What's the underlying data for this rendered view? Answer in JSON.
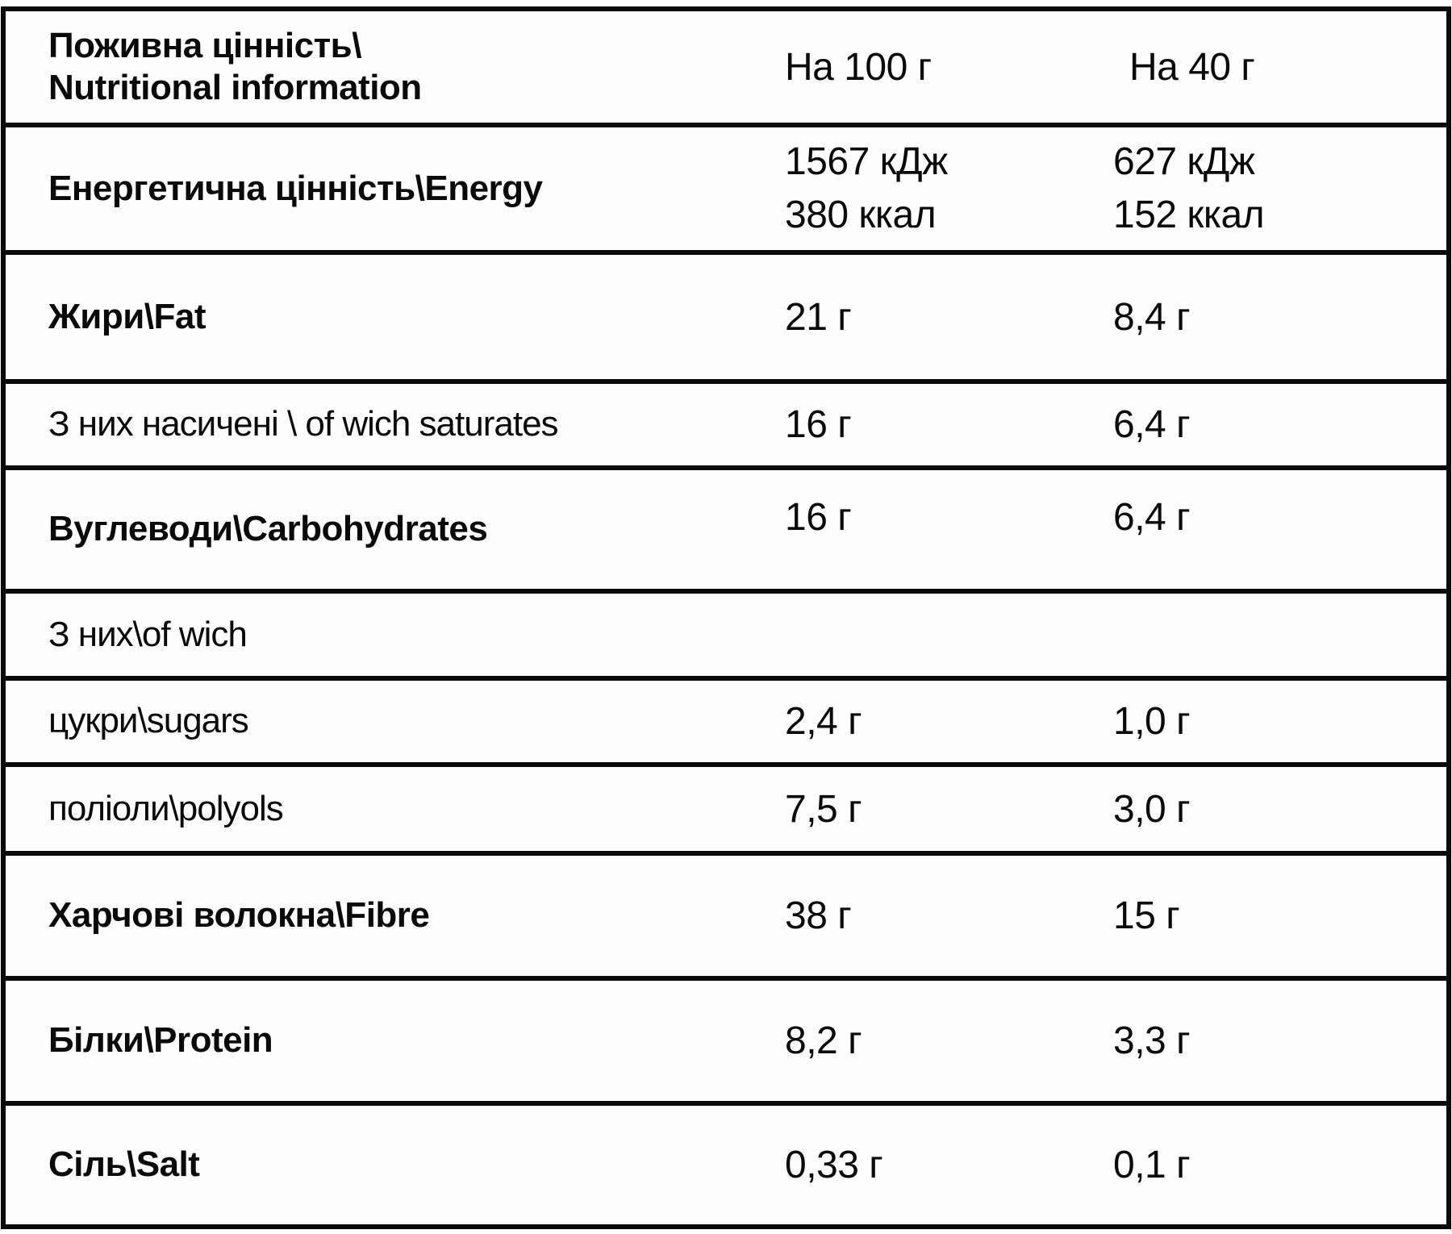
{
  "table": {
    "header": {
      "label_line1": "Поживна цінність\\",
      "label_line2": "Nutritional information",
      "col_per100": "На 100 г",
      "col_per40": "На 40 г"
    },
    "rows": [
      {
        "label": "Енергетична цінність\\Energy",
        "per100_line1": "1567 кДж",
        "per100_line2": "380 ккал",
        "per40_line1": "627 кДж",
        "per40_line2": "152 ккал"
      },
      {
        "label": "Жири\\Fat",
        "per100": "21 г",
        "per40": "8,4 г"
      },
      {
        "label": "З них насичені \\ of wich saturates",
        "per100": "16 г",
        "per40": "6,4 г"
      },
      {
        "label": "Вуглеводи\\Carbohydrates",
        "per100": "16 г",
        "per40": "6,4 г"
      },
      {
        "label": "З них\\of wich",
        "per100": "",
        "per40": ""
      },
      {
        "label": "цукри\\sugars",
        "per100": "2,4 г",
        "per40": "1,0 г"
      },
      {
        "label": "поліоли\\polyols",
        "per100": "7,5 г",
        "per40": "3,0 г"
      },
      {
        "label": "Харчові волокна\\Fibre",
        "per100": "38 г",
        "per40": "15 г"
      },
      {
        "label": "Білки\\Protein",
        "per100": "8,2 г",
        "per40": "3,3 г"
      },
      {
        "label": "Сіль\\Salt",
        "per100": "0,33 г",
        "per40": "0,1 г"
      }
    ]
  }
}
